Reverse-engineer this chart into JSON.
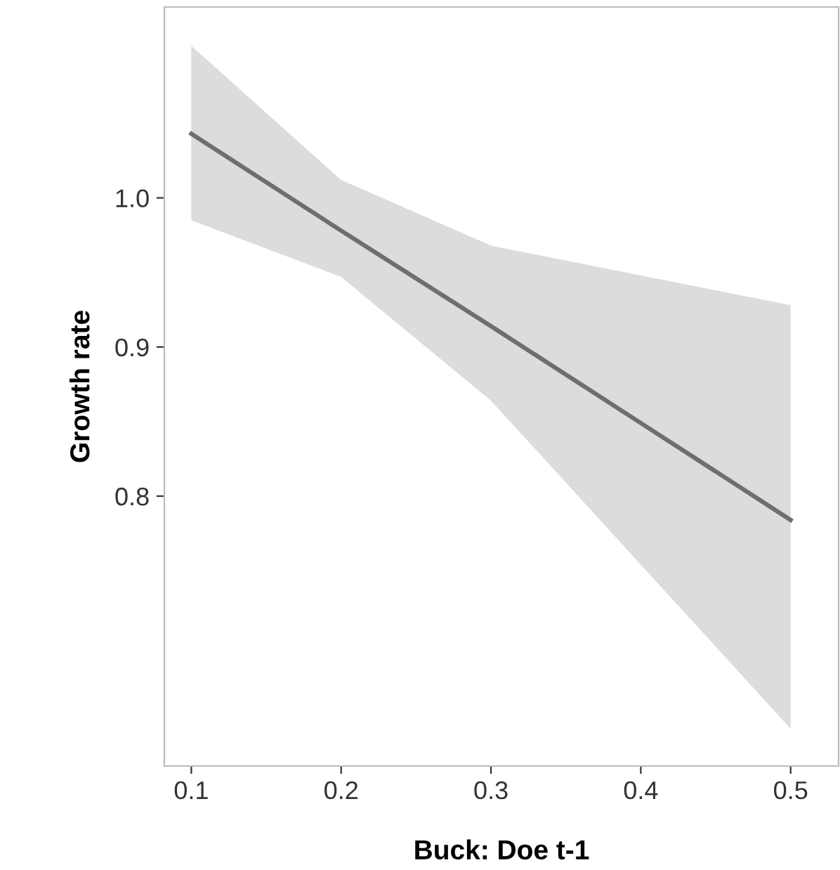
{
  "chart_data": {
    "type": "line",
    "xlabel": "Buck: Doe t-1",
    "ylabel": "Growth rate",
    "series": [
      {
        "color": "#6e6e6e",
        "x": [
          0.1,
          0.2,
          0.3,
          0.4,
          0.5
        ],
        "values": [
          1.043,
          0.978,
          0.914,
          0.849,
          0.784
        ],
        "lower": [
          0.985,
          0.947,
          0.864,
          0.754,
          0.644
        ],
        "upper": [
          1.102,
          1.012,
          0.968,
          0.948,
          0.928
        ]
      }
    ],
    "xlim": [
      0.082,
      0.532
    ],
    "ylim": [
      0.619,
      1.128
    ],
    "xticks": [
      0.1,
      0.2,
      0.3,
      0.4,
      0.5
    ],
    "yticks": [
      0.8,
      0.9,
      {
        "value": 1.0,
        "label": "1.0"
      }
    ],
    "grid": false,
    "marker": "none",
    "line_style": "solid"
  }
}
